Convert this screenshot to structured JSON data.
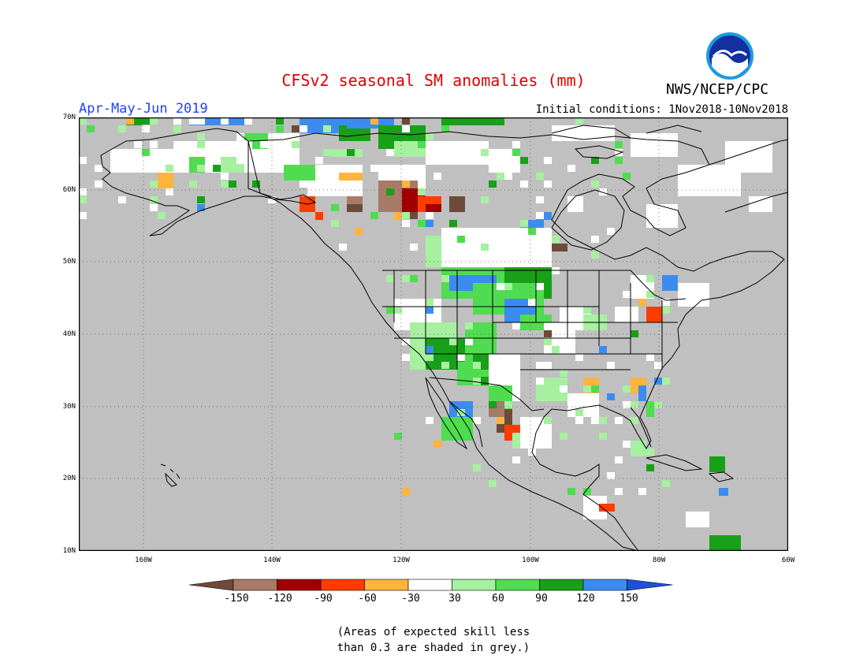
{
  "title": "CFSv2 seasonal SM anomalies (mm)",
  "period": "Apr-May-Jun 2019",
  "initial_conditions": "Initial conditions: 1Nov2018-10Nov2018",
  "agency": "NWS/NCEP/CPC",
  "logo_text": "NOAA",
  "map": {
    "region": "North America",
    "lat_range": [
      10,
      70
    ],
    "lon_range": [
      -170,
      -60
    ],
    "lat_labels": [
      "70N",
      "60N",
      "50N",
      "40N",
      "30N",
      "20N",
      "10N"
    ],
    "lon_labels": [
      "160W",
      "140W",
      "120W",
      "100W",
      "80W",
      "60W"
    ],
    "grey_color": "#c0c0c0",
    "grey_meaning": "expected skill less than 0.3"
  },
  "legend": {
    "bins": [
      {
        "range": "< -150",
        "color": "#6e4a3a"
      },
      {
        "range": "-150 to -120",
        "color": "#a87a68"
      },
      {
        "range": "-120 to -90",
        "color": "#a00000"
      },
      {
        "range": "-90 to -60",
        "color": "#ff3c00"
      },
      {
        "range": "-60 to -30",
        "color": "#ffb43c"
      },
      {
        "range": "-30 to 30",
        "color": "#ffffff"
      },
      {
        "range": "30 to 60",
        "color": "#a6f0a0"
      },
      {
        "range": "60 to 90",
        "color": "#50dc50"
      },
      {
        "range": "90 to 120",
        "color": "#18a018"
      },
      {
        "range": "120 to 150",
        "color": "#3c8cf0"
      },
      {
        "range": "> 150",
        "color": "#1e50dc"
      }
    ],
    "tick_labels": [
      "-150",
      "-120",
      "-90",
      "-60",
      "-30",
      "30",
      "60",
      "90",
      "120",
      "150"
    ]
  },
  "note_line1": "(Areas of expected skill less",
  "note_line2": "than 0.3 are shaded in grey.)"
}
